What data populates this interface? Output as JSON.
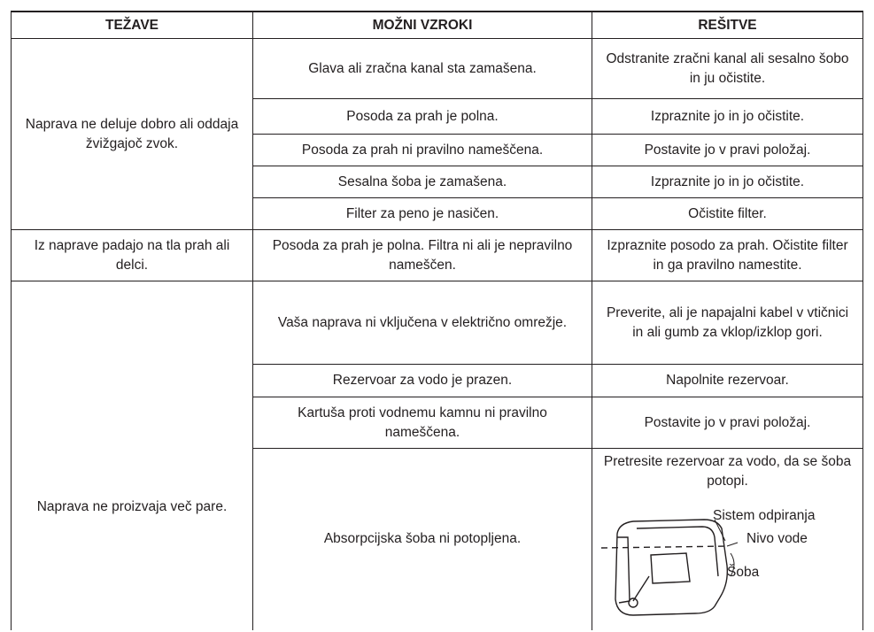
{
  "table": {
    "headers": [
      "TEŽAVE",
      "MOŽNI VZROKI",
      "REŠITVE"
    ],
    "groups": [
      {
        "problem": "Naprava ne deluje dobro ali oddaja žvižgajoč zvok.",
        "rows": [
          {
            "cause": "Glava ali zračna kanal sta zamašena.",
            "solution": "Odstranite zračni kanal ali sesalno šobo in ju očistite."
          },
          {
            "cause": "Posoda za prah je polna.",
            "solution": "Izpraznite jo in jo očistite."
          },
          {
            "cause": "Posoda za prah ni pravilno nameščena.",
            "solution": "Postavite jo v pravi položaj."
          },
          {
            "cause": "Sesalna šoba je zamašena.",
            "solution": "Izpraznite jo in jo očistite."
          },
          {
            "cause": "Filter za peno je nasičen.",
            "solution": "Očistite filter."
          }
        ]
      },
      {
        "problem": "Iz naprave padajo na tla prah ali delci.",
        "rows": [
          {
            "cause": "Posoda za prah je polna. Filtra ni ali je nepravilno nameščen.",
            "solution": "Izpraznite posodo za prah. Očistite filter in ga pravilno namestite."
          }
        ]
      },
      {
        "problem": "Naprava ne proizvaja več pare.",
        "rows": [
          {
            "cause": "Vaša naprava ni vključena v električno omrežje.",
            "solution": "Preverite, ali je napajalni kabel v vtičnici in ali gumb za vklop/izklop gori."
          },
          {
            "cause": "Rezervoar za vodo je prazen.",
            "solution": "Napolnite rezervoar."
          },
          {
            "cause": "Kartuša proti vodnemu kamnu ni pravilno nameščena.",
            "solution": "Postavite jo v pravi položaj."
          },
          {
            "cause": "Absorpcijska šoba ni potopljena.",
            "solution": "Pretresite rezervoar za vodo, da se šoba potopi.",
            "diagram_labels": [
              "Sistem odpiranja",
              "Nivo vode",
              "Šoba"
            ]
          }
        ]
      }
    ]
  }
}
